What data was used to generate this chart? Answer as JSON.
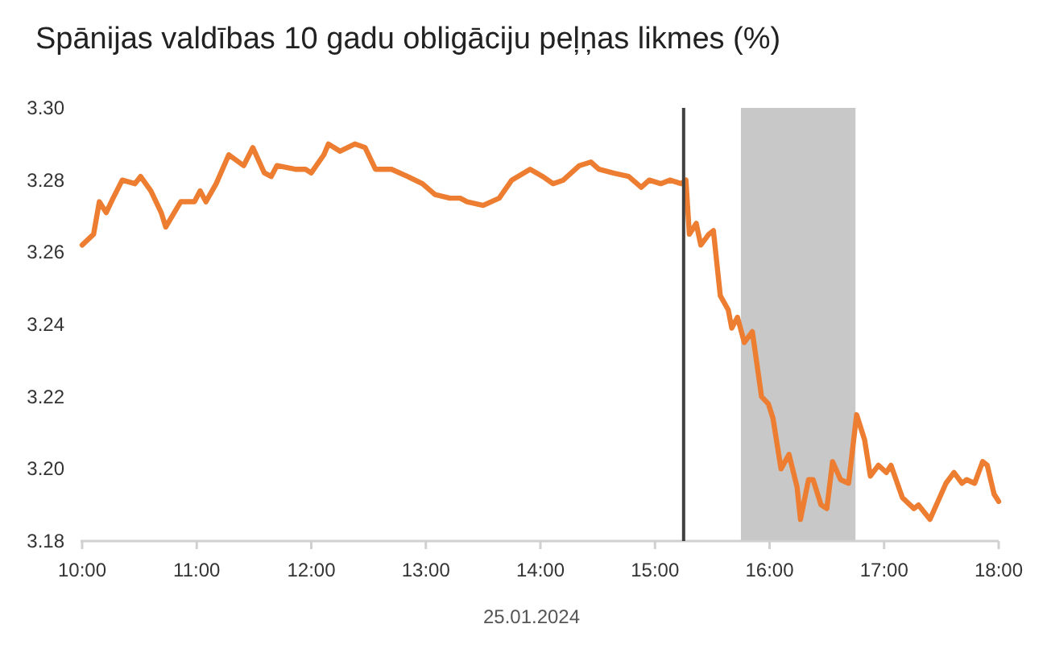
{
  "chart_data": {
    "type": "line",
    "title": "Spānijas valdības 10 gadu obligāciju peļņas likmes (%)",
    "xlabel": "25.01.2024",
    "xlim": [
      10,
      18
    ],
    "ylim": [
      3.18,
      3.3
    ],
    "xticks": [
      {
        "value": 10,
        "label": "10:00"
      },
      {
        "value": 11,
        "label": "11:00"
      },
      {
        "value": 12,
        "label": "12:00"
      },
      {
        "value": 13,
        "label": "13:00"
      },
      {
        "value": 14,
        "label": "14:00"
      },
      {
        "value": 15,
        "label": "15:00"
      },
      {
        "value": 16,
        "label": "16:00"
      },
      {
        "value": 17,
        "label": "17:00"
      },
      {
        "value": 18,
        "label": "18:00"
      }
    ],
    "yticks": [
      {
        "value": 3.18,
        "label": "3.18"
      },
      {
        "value": 3.2,
        "label": "3.20"
      },
      {
        "value": 3.22,
        "label": "3.22"
      },
      {
        "value": 3.24,
        "label": "3.24"
      },
      {
        "value": 3.26,
        "label": "3.26"
      },
      {
        "value": 3.28,
        "label": "3.28"
      },
      {
        "value": 3.3,
        "label": "3.30"
      }
    ],
    "grid": false,
    "ref_lines": [
      {
        "axis": "x",
        "value": 15.25,
        "color": "#404040"
      }
    ],
    "bands": [
      {
        "axis": "x",
        "from": 15.75,
        "to": 16.75,
        "color": "#c8c8c8"
      }
    ],
    "series": [
      {
        "color": "#ed7d31",
        "x": [
          10.0,
          10.1,
          10.15,
          10.21,
          10.27,
          10.35,
          10.46,
          10.51,
          10.6,
          10.69,
          10.73,
          10.86,
          10.98,
          11.03,
          11.08,
          11.17,
          11.28,
          11.41,
          11.49,
          11.59,
          11.65,
          11.7,
          11.86,
          11.95,
          12.0,
          12.11,
          12.15,
          12.25,
          12.38,
          12.47,
          12.56,
          12.7,
          12.84,
          12.97,
          13.08,
          13.21,
          13.3,
          13.36,
          13.5,
          13.64,
          13.75,
          13.91,
          14.02,
          14.11,
          14.2,
          14.34,
          14.44,
          14.51,
          14.63,
          14.77,
          14.88,
          14.95,
          15.05,
          15.13,
          15.23,
          15.27,
          15.3,
          15.36,
          15.4,
          15.47,
          15.51,
          15.57,
          15.64,
          15.67,
          15.72,
          15.78,
          15.85,
          15.89,
          15.93,
          15.99,
          16.03,
          16.1,
          16.17,
          16.24,
          16.27,
          16.34,
          16.38,
          16.45,
          16.5,
          16.55,
          16.62,
          16.69,
          16.76,
          16.83,
          16.88,
          16.95,
          17.02,
          17.06,
          17.16,
          17.26,
          17.3,
          17.4,
          17.47,
          17.54,
          17.61,
          17.68,
          17.72,
          17.79,
          17.86,
          17.9,
          17.96,
          18.0
        ],
        "values": [
          3.262,
          3.265,
          3.274,
          3.271,
          3.275,
          3.28,
          3.279,
          3.281,
          3.277,
          3.271,
          3.267,
          3.274,
          3.274,
          3.277,
          3.274,
          3.279,
          3.287,
          3.284,
          3.289,
          3.282,
          3.281,
          3.284,
          3.283,
          3.283,
          3.282,
          3.287,
          3.29,
          3.288,
          3.29,
          3.289,
          3.283,
          3.283,
          3.281,
          3.279,
          3.276,
          3.275,
          3.275,
          3.274,
          3.273,
          3.275,
          3.28,
          3.283,
          3.281,
          3.279,
          3.28,
          3.284,
          3.285,
          3.283,
          3.282,
          3.281,
          3.278,
          3.28,
          3.279,
          3.28,
          3.279,
          3.28,
          3.265,
          3.268,
          3.262,
          3.265,
          3.266,
          3.248,
          3.244,
          3.239,
          3.242,
          3.235,
          3.238,
          3.229,
          3.22,
          3.218,
          3.214,
          3.2,
          3.204,
          3.195,
          3.186,
          3.197,
          3.197,
          3.19,
          3.189,
          3.202,
          3.197,
          3.196,
          3.215,
          3.208,
          3.198,
          3.201,
          3.199,
          3.201,
          3.192,
          3.189,
          3.19,
          3.186,
          3.191,
          3.196,
          3.199,
          3.196,
          3.197,
          3.196,
          3.202,
          3.201,
          3.193,
          3.191
        ]
      }
    ]
  }
}
